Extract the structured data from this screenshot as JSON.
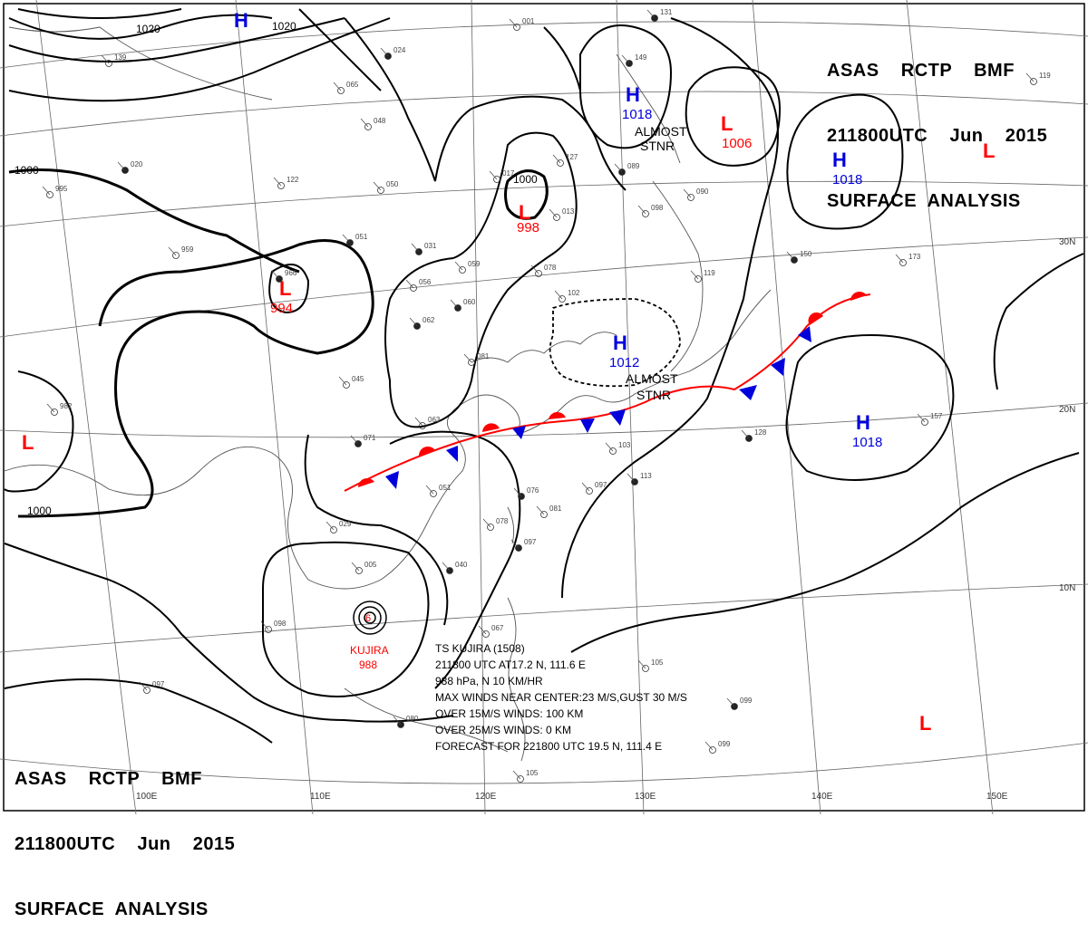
{
  "header": {
    "line1": "ASAS    RCTP    BMF",
    "line2": "211800UTC    Jun    2015",
    "line3": "SURFACE  ANALYSIS"
  },
  "map": {
    "grid": {
      "longitudes": [
        "100E",
        "110E",
        "120E",
        "130E",
        "140E",
        "150E"
      ],
      "latitudes": [
        "30N",
        "20N",
        "10N"
      ]
    },
    "isobars": [
      "1020",
      "1020",
      "1000",
      "1000",
      "1000"
    ],
    "centers": [
      {
        "type": "H",
        "value": ""
      },
      {
        "type": "H",
        "value": "1018"
      },
      {
        "type": "L",
        "value": "1006"
      },
      {
        "type": "H",
        "value": "1018"
      },
      {
        "type": "L",
        "value": ""
      },
      {
        "type": "L",
        "value": "998"
      },
      {
        "type": "L",
        "value": "994"
      },
      {
        "type": "H",
        "value": "1012"
      },
      {
        "type": "H",
        "value": "1018"
      },
      {
        "type": "L",
        "value": ""
      },
      {
        "type": "L",
        "value": ""
      }
    ],
    "annotations": [
      {
        "line1": "ALMOST",
        "line2": "STNR"
      },
      {
        "line1": "ALMOST",
        "line2": "STNR"
      }
    ],
    "typhoon": {
      "name": "KUJIRA",
      "value": "988"
    },
    "ts_info": [
      "TS  KUJIRA  (1508)",
      "211800 UTC  AT17.2 N, 111.6 E",
      "988 hPa, N  10 KM/HR",
      "MAX WINDS NEAR CENTER:23 M/S,GUST 30 M/S",
      "OVER 15M/S WINDS: 100 KM",
      "OVER 25M/S WINDS: 0 KM",
      "FORECAST FOR 221800 UTC 19.5 N, 111.4 E"
    ],
    "stations": [
      "020",
      "122",
      "050",
      "031",
      "017",
      "127",
      "089",
      "098",
      "090",
      "149",
      "139",
      "065",
      "024",
      "048",
      "013",
      "051",
      "056",
      "059",
      "060",
      "078",
      "102",
      "062",
      "045",
      "063",
      "071",
      "081",
      "103",
      "113",
      "097",
      "051",
      "076",
      "081",
      "078",
      "097",
      "029",
      "005",
      "040",
      "098",
      "097",
      "080",
      "067",
      "105",
      "099",
      "099",
      "105",
      "128",
      "157",
      "173",
      "150",
      "119",
      "001",
      "131",
      "119",
      "982",
      "966",
      "995",
      "959"
    ]
  },
  "colors": {
    "high": "#0000dd",
    "low": "#ff0000",
    "warm_front": "#ff0000",
    "cold_front": "#0000dd",
    "isobar": "#000000",
    "coast": "#555555",
    "grid": "#666666"
  }
}
